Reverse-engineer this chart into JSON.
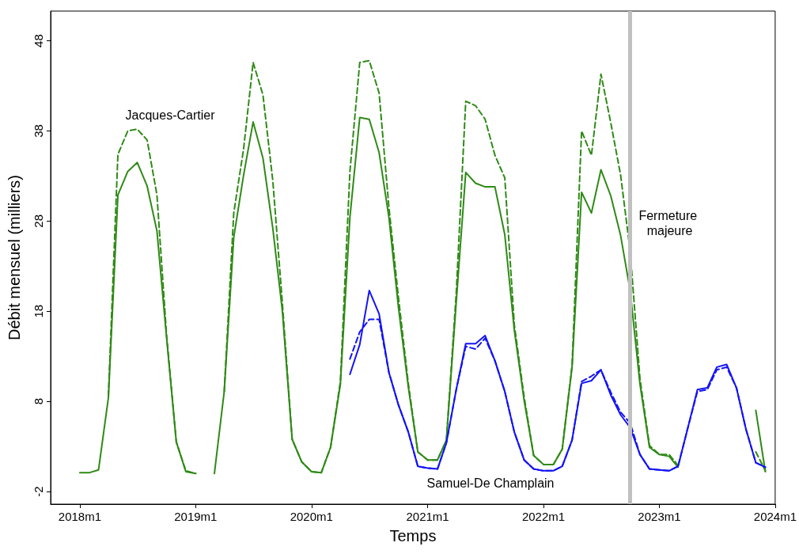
{
  "chart_data": {
    "type": "line",
    "xlabel": "Temps",
    "ylabel": "Débit mensuel (milliers)",
    "x": [
      "2018-01",
      "2018-02",
      "2018-03",
      "2018-04",
      "2018-05",
      "2018-06",
      "2018-07",
      "2018-08",
      "2018-09",
      "2018-10",
      "2018-11",
      "2018-12",
      "2019-01",
      "2019-02",
      "2019-03",
      "2019-04",
      "2019-05",
      "2019-06",
      "2019-07",
      "2019-08",
      "2019-09",
      "2019-10",
      "2019-11",
      "2019-12",
      "2020-01",
      "2020-02",
      "2020-03",
      "2020-04",
      "2020-05",
      "2020-06",
      "2020-07",
      "2020-08",
      "2020-09",
      "2020-10",
      "2020-11",
      "2020-12",
      "2021-01",
      "2021-02",
      "2021-03",
      "2021-04",
      "2021-05",
      "2021-06",
      "2021-07",
      "2021-08",
      "2021-09",
      "2021-10",
      "2021-11",
      "2021-12",
      "2022-01",
      "2022-02",
      "2022-03",
      "2022-04",
      "2022-05",
      "2022-06",
      "2022-07",
      "2022-08",
      "2022-09",
      "2022-10",
      "2022-11",
      "2022-12",
      "2023-01",
      "2023-02",
      "2023-03",
      "2023-04",
      "2023-05",
      "2023-06",
      "2023-07",
      "2023-08",
      "2023-09",
      "2023-10",
      "2023-11",
      "2023-12"
    ],
    "series": [
      {
        "color": "#2f8a16",
        "line_style": "solid",
        "values": [
          0.1,
          0.1,
          0.4,
          8.4,
          30.9,
          33.5,
          34.5,
          31.9,
          26.9,
          15.2,
          3.5,
          0.2,
          0.0,
          null,
          0.0,
          9.1,
          26.2,
          33.1,
          39.0,
          35.0,
          27.2,
          18.1,
          3.8,
          1.3,
          0.2,
          0.1,
          2.9,
          9.9,
          28.4,
          39.5,
          39.3,
          35.6,
          28.4,
          18.4,
          9.6,
          2.4,
          1.5,
          1.5,
          3.7,
          19.0,
          33.4,
          32.2,
          31.8,
          31.8,
          26.5,
          15.9,
          8.1,
          2.0,
          1.0,
          1.0,
          2.7,
          11.8,
          31.2,
          28.9,
          33.7,
          30.8,
          26.4,
          20.3,
          9.9,
          2.9,
          2.1,
          1.9,
          0.7,
          null,
          null,
          null,
          null,
          null,
          null,
          null,
          7.0,
          0.2
        ]
      },
      {
        "name": "Jacques-Cartier",
        "color": "#2f8a16",
        "line_style": "dashed",
        "values": [
          null,
          null,
          null,
          8.6,
          35.4,
          38.0,
          38.2,
          37.0,
          30.9,
          15.5,
          3.5,
          0.3,
          0.0,
          null,
          null,
          9.1,
          28.9,
          36.0,
          45.6,
          42.0,
          32.5,
          19.0,
          3.8,
          1.3,
          0.2,
          0.1,
          2.9,
          10.2,
          33.5,
          45.6,
          45.8,
          42.2,
          29.5,
          19.5,
          10.0,
          2.4,
          1.5,
          1.5,
          3.7,
          20.0,
          41.3,
          40.8,
          39.3,
          35.3,
          32.8,
          16.5,
          8.5,
          2.0,
          1.0,
          1.0,
          2.7,
          12.0,
          38.0,
          35.3,
          44.3,
          38.9,
          33.1,
          24.7,
          10.5,
          3.1,
          2.1,
          2.1,
          0.9,
          null,
          null,
          null,
          null,
          null,
          null,
          null,
          2.4,
          0.3
        ]
      },
      {
        "name": "Samuel-De Champlain",
        "color": "#1414f5",
        "line_style": "solid",
        "values": [
          null,
          null,
          null,
          null,
          null,
          null,
          null,
          null,
          null,
          null,
          null,
          null,
          null,
          null,
          null,
          null,
          null,
          null,
          null,
          null,
          null,
          null,
          null,
          null,
          null,
          null,
          null,
          null,
          11.0,
          14.3,
          20.3,
          17.7,
          11.2,
          7.6,
          4.6,
          0.8,
          0.6,
          0.5,
          3.4,
          9.3,
          14.4,
          14.4,
          15.3,
          12.5,
          9.1,
          4.6,
          1.5,
          0.5,
          0.3,
          0.3,
          0.8,
          3.7,
          10.0,
          10.3,
          11.5,
          8.7,
          6.5,
          5.1,
          2.1,
          0.5,
          0.4,
          0.3,
          0.8,
          5.1,
          9.3,
          9.5,
          11.8,
          12.1,
          9.5,
          4.9,
          1.2,
          0.7
        ]
      },
      {
        "color": "#1414f5",
        "line_style": "dashed",
        "values": [
          null,
          null,
          null,
          null,
          null,
          null,
          null,
          null,
          null,
          null,
          null,
          null,
          null,
          null,
          null,
          null,
          null,
          null,
          null,
          null,
          null,
          null,
          null,
          null,
          null,
          null,
          null,
          null,
          12.7,
          15.7,
          17.1,
          17.1,
          11.2,
          7.6,
          4.6,
          0.8,
          0.6,
          0.5,
          3.4,
          9.3,
          14.1,
          13.8,
          15.0,
          12.5,
          9.1,
          4.6,
          1.5,
          0.5,
          0.3,
          0.3,
          0.8,
          3.7,
          10.2,
          10.8,
          11.5,
          9.0,
          6.8,
          5.6,
          2.1,
          0.5,
          0.4,
          0.3,
          0.8,
          5.1,
          9.1,
          9.3,
          11.5,
          11.8,
          9.5,
          4.9,
          1.2,
          0.7
        ]
      }
    ],
    "xlim": [
      "2017-10",
      "2024-01"
    ],
    "xticks": [
      {
        "value": "2018-01",
        "label": "2018m1"
      },
      {
        "value": "2019-01",
        "label": "2019m1"
      },
      {
        "value": "2020-01",
        "label": "2020m1"
      },
      {
        "value": "2021-01",
        "label": "2021m1"
      },
      {
        "value": "2022-01",
        "label": "2022m1"
      },
      {
        "value": "2023-01",
        "label": "2023m1"
      },
      {
        "value": "2024-01",
        "label": "2024m1"
      }
    ],
    "ylim": [
      -3.4,
      51.3
    ],
    "yticks": [
      -2,
      8,
      18,
      28,
      38,
      48
    ],
    "ref_lines": [
      {
        "axis": "x",
        "value": "2022-10",
        "label": "Fermeture majeure",
        "color": "#c0c0c0"
      }
    ],
    "grid": false,
    "marker": "none"
  }
}
